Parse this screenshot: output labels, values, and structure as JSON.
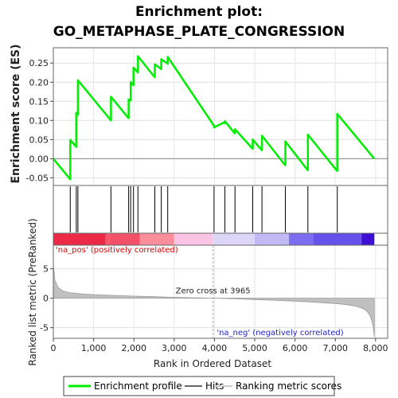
{
  "chart_data": {
    "type": "line",
    "title_line1": "Enrichment plot:",
    "title_line2": "GO_METAPHASE_PLATE_CONGRESSION",
    "ylabel_top": "Enrichment score (ES)",
    "ylabel_bottom": "Ranked list metric (PreRanked)",
    "xlabel": "Rank in Ordered Dataset",
    "xlim": [
      0,
      8300
    ],
    "xticks": [
      0,
      1000,
      2000,
      3000,
      4000,
      5000,
      6000,
      7000,
      8000
    ],
    "xtick_labels": [
      "0",
      "1,000",
      "2,000",
      "3,000",
      "4,000",
      "5,000",
      "6,000",
      "7,000",
      "8,000"
    ],
    "es_ylim": [
      -0.07,
      0.29
    ],
    "es_yticks": [
      -0.05,
      0.0,
      0.05,
      0.1,
      0.15,
      0.2,
      0.25
    ],
    "es_ytick_labels": [
      "-0.05",
      "0.00",
      "0.05",
      "0.10",
      "0.15",
      "0.20",
      "0.25"
    ],
    "metric_ylim": [
      -6.8,
      9.0
    ],
    "metric_yticks": [
      -5,
      0,
      5
    ],
    "metric_ytick_labels": [
      "-5",
      "0",
      "5"
    ],
    "total_ranks": 7970,
    "hits": [
      420,
      570,
      610,
      1430,
      1870,
      1920,
      1990,
      2100,
      2520,
      2680,
      2840,
      3990,
      4260,
      4510,
      4950,
      5180,
      5760,
      6320,
      7050
    ],
    "es_curve": {
      "x": [
        0,
        420,
        420,
        570,
        570,
        610,
        610,
        1430,
        1430,
        1850,
        1870,
        1870,
        1920,
        1920,
        1990,
        1990,
        2080,
        2100,
        2100,
        2500,
        2520,
        2520,
        2660,
        2680,
        2680,
        2820,
        2840,
        2840,
        3990,
        3990,
        4240,
        4260,
        4260,
        4490,
        4510,
        4510,
        4930,
        4950,
        4950,
        5160,
        5180,
        5180,
        5740,
        5760,
        5760,
        6300,
        6320,
        6320,
        7030,
        7050,
        7050,
        7970
      ],
      "y": [
        0.0,
        -0.054,
        0.049,
        0.031,
        0.12,
        0.115,
        0.205,
        0.1,
        0.162,
        0.108,
        0.106,
        0.155,
        0.152,
        0.2,
        0.192,
        0.238,
        0.228,
        0.225,
        0.268,
        0.215,
        0.213,
        0.247,
        0.236,
        0.234,
        0.26,
        0.25,
        0.248,
        0.266,
        0.086,
        0.082,
        0.095,
        0.093,
        0.098,
        0.068,
        0.066,
        0.077,
        0.028,
        0.026,
        0.05,
        0.024,
        0.022,
        0.06,
        -0.015,
        -0.017,
        0.045,
        -0.028,
        -0.03,
        0.063,
        -0.03,
        -0.032,
        0.117,
        0.0
      ]
    },
    "metric_curve": {
      "x": [
        0,
        40,
        120,
        250,
        400,
        700,
        1000,
        1500,
        2000,
        2500,
        3000,
        3500,
        3965,
        4500,
        5000,
        5500,
        6000,
        6500,
        7000,
        7300,
        7500,
        7650,
        7750,
        7820,
        7870,
        7910,
        7945,
        7970
      ],
      "y": [
        5.8,
        3.0,
        1.8,
        1.2,
        0.95,
        0.75,
        0.62,
        0.48,
        0.36,
        0.26,
        0.16,
        0.07,
        0.0,
        -0.1,
        -0.22,
        -0.35,
        -0.5,
        -0.68,
        -0.9,
        -1.1,
        -1.35,
        -1.65,
        -2.0,
        -2.5,
        -3.1,
        -3.9,
        -5.0,
        -6.6
      ]
    },
    "zero_cross_rank": 3965,
    "zero_cross_label": "Zero cross at 3965",
    "pos_label": "'na_pos' (positively correlated)",
    "neg_label": "'na_neg' (negatively correlated)",
    "heatmap_segments": [
      {
        "to": 1300,
        "color": "#ec2a46"
      },
      {
        "to": 1400,
        "color": "#f4566a"
      },
      {
        "to": 2150,
        "color": "#f3506a"
      },
      {
        "to": 3000,
        "color": "#fb8e9a"
      },
      {
        "to": 3950,
        "color": "#fcc4e4"
      },
      {
        "to": 5000,
        "color": "#ddd6f6"
      },
      {
        "to": 5850,
        "color": "#c2baf4"
      },
      {
        "to": 6450,
        "color": "#7d6df0"
      },
      {
        "to": 7650,
        "color": "#6652ea"
      },
      {
        "to": 7970,
        "color": "#3f0ed4"
      }
    ],
    "colors": {
      "enrichment_line": "#00ee00",
      "hit_line": "#000000",
      "metric_fill": "#c0c0c0",
      "pos_label": "#e00000",
      "neg_label": "#2222cc",
      "zero_line": "#aaaaaa"
    },
    "legend": [
      {
        "label": "Enrichment profile",
        "color": "#00ee00",
        "style": "thick-line"
      },
      {
        "label": "Hits",
        "color": "#666666",
        "style": "line"
      },
      {
        "label": "Ranking metric scores",
        "color": "#cccccc",
        "style": "line"
      }
    ]
  }
}
